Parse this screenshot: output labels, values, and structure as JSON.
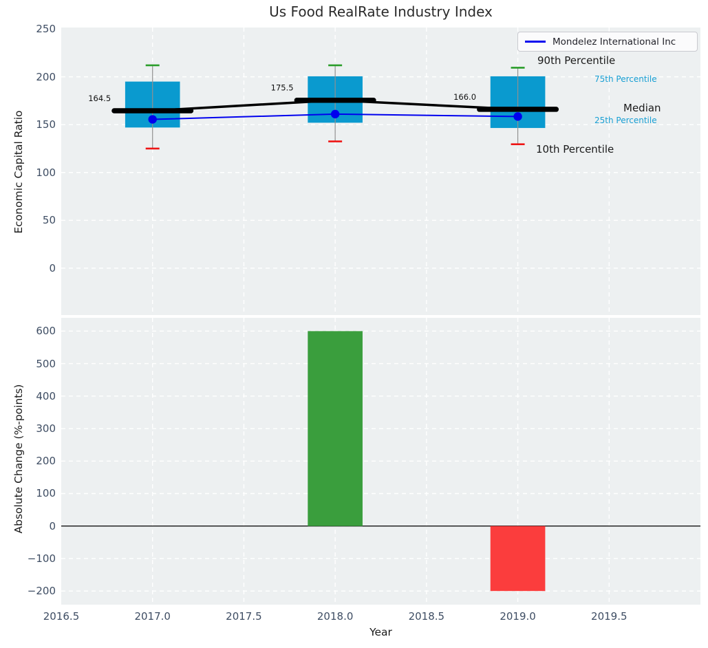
{
  "title": "Us Food RealRate Industry Index",
  "legend": {
    "label": "Mondelez International Inc",
    "line_color": "#0000ee"
  },
  "annotations": {
    "p90": "90th Percentile",
    "p75": "75th Percentile",
    "median": "Median",
    "p25": "25th Percentile",
    "p10": "10th Percentile"
  },
  "axes": {
    "top_ylabel": "Economic Capital Ratio",
    "bottom_ylabel": "Absolute Change (%-points)",
    "xlabel": "Year"
  },
  "colors": {
    "box_fill": "#0a9acf",
    "cap_high": "#2a9d2a",
    "cap_low": "#ee1515",
    "whisker": "#909090",
    "median_line": "#000000",
    "company_line": "#0000ee",
    "bar_positive": "#3a9e3d",
    "bar_negative": "#fb3d3d",
    "plot_background": "#edf0f1",
    "gridline": "#ffffff",
    "tick_label": "#3e4d63",
    "annotation_accent": "#189fd4"
  },
  "chart_data": [
    {
      "type": "box",
      "title": "Us Food RealRate Industry Index",
      "ylabel": "Economic Capital Ratio",
      "series_label": "Mondelez International Inc",
      "ylim": [
        -49,
        251.5
      ],
      "xlim": [
        2016.5,
        2020.0
      ],
      "yticks": [
        0,
        50,
        100,
        150,
        200,
        250
      ],
      "grid": "white-dashed",
      "legend_position": "upper right",
      "boxes": [
        {
          "year": 2017,
          "p10": 125.0,
          "p25": 147.0,
          "median": 164.5,
          "p75": 195.0,
          "p90": 212.0,
          "company": 155.5,
          "median_label": "164.5"
        },
        {
          "year": 2018,
          "p10": 132.5,
          "p25": 152.0,
          "median": 175.5,
          "p75": 200.5,
          "p90": 212.0,
          "company": 161.0,
          "median_label": "175.5"
        },
        {
          "year": 2019,
          "p10": 129.5,
          "p25": 146.5,
          "median": 166.0,
          "p75": 200.5,
          "p90": 209.5,
          "company": 158.5,
          "median_label": "166.0"
        }
      ]
    },
    {
      "type": "bar",
      "ylabel": "Absolute Change (%-points)",
      "xlabel": "Year",
      "ylim": [
        -242,
        641
      ],
      "xlim": [
        2016.5,
        2020.0
      ],
      "yticks": [
        -200,
        -100,
        0,
        100,
        200,
        300,
        400,
        500,
        600
      ],
      "xticks": [
        2016.5,
        2017.0,
        2017.5,
        2018.0,
        2018.5,
        2019.0,
        2019.5
      ],
      "grid": "white-dashed",
      "bars": [
        {
          "year": 2018,
          "value": 600,
          "direction": "up"
        },
        {
          "year": 2019,
          "value": -200,
          "direction": "down"
        }
      ]
    }
  ]
}
